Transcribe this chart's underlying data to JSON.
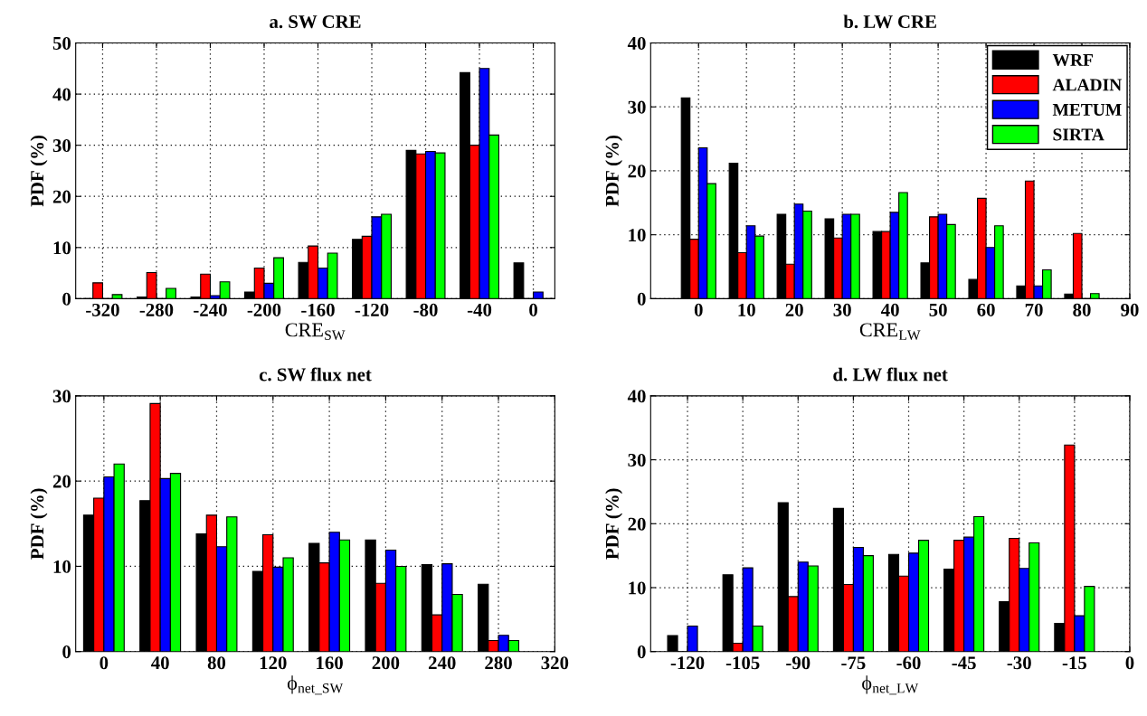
{
  "chart_data": [
    {
      "type": "bar",
      "title": "a. SW CRE",
      "xlabel": "CRE$_{SW}$",
      "ylabel": "PDF (%)",
      "x": [
        -320,
        -280,
        -240,
        -200,
        -160,
        -120,
        -80,
        -40,
        0
      ],
      "xlim": [
        -340,
        16
      ],
      "xticks": [
        -320,
        -280,
        -240,
        -200,
        -160,
        -120,
        -80,
        -40,
        0
      ],
      "ylim": [
        0,
        50
      ],
      "yticks": [
        0,
        10,
        20,
        30,
        40,
        50
      ],
      "grid": true,
      "series": [
        {
          "color": "#000000",
          "values": [
            0,
            0.3,
            0.3,
            1.3,
            7.1,
            11.6,
            29.0,
            44.2,
            7.0
          ]
        },
        {
          "color": "#ff0000",
          "values": [
            3.1,
            5.1,
            4.8,
            6.0,
            10.3,
            12.2,
            28.3,
            30.0,
            0
          ]
        },
        {
          "color": "#0000ff",
          "values": [
            0,
            null,
            0.6,
            3.0,
            6.0,
            16.0,
            28.8,
            45.0,
            1.3
          ]
        },
        {
          "color": "#00ff00",
          "values": [
            0.8,
            2.0,
            3.3,
            8.0,
            8.9,
            16.5,
            28.5,
            32.0,
            0
          ]
        }
      ]
    },
    {
      "type": "bar",
      "title": "b. LW CRE",
      "xlabel": "CRE$_{LW}$",
      "ylabel": "PDF (%)",
      "x": [
        0,
        10,
        20,
        30,
        40,
        50,
        60,
        70,
        80
      ],
      "xlim": [
        -10,
        90
      ],
      "xticks": [
        0,
        10,
        20,
        30,
        40,
        50,
        60,
        70,
        80,
        90
      ],
      "ylim": [
        0,
        40
      ],
      "yticks": [
        0,
        10,
        20,
        30,
        40
      ],
      "grid": true,
      "legend": "top right",
      "series": [
        {
          "name": "WRF",
          "color": "#000000",
          "values": [
            31.4,
            21.2,
            13.2,
            12.5,
            10.5,
            5.6,
            3.0,
            2.0,
            0.7
          ]
        },
        {
          "name": "ALADIN",
          "color": "#ff0000",
          "values": [
            9.3,
            7.2,
            5.4,
            9.5,
            10.5,
            12.8,
            15.7,
            18.4,
            10.2
          ]
        },
        {
          "name": "METUM",
          "color": "#0000ff",
          "values": [
            23.6,
            11.4,
            14.8,
            13.2,
            13.5,
            13.2,
            8.0,
            2.0,
            0
          ]
        },
        {
          "name": "SIRTA",
          "color": "#00ff00",
          "values": [
            18.0,
            9.8,
            13.7,
            13.2,
            16.6,
            11.6,
            11.4,
            4.5,
            0.8
          ]
        }
      ]
    },
    {
      "type": "bar",
      "title": "c. SW flux net",
      "xlabel": "ϕ$_{net_SW}$",
      "ylabel": "PDF (%)",
      "x": [
        0,
        40,
        80,
        120,
        160,
        200,
        240,
        280
      ],
      "xlim": [
        -20,
        320
      ],
      "xticks": [
        0,
        40,
        80,
        120,
        160,
        200,
        240,
        280,
        320
      ],
      "ylim": [
        0,
        30
      ],
      "yticks": [
        0,
        10,
        20,
        30
      ],
      "grid": true,
      "series": [
        {
          "color": "#000000",
          "values": [
            16.0,
            17.7,
            13.8,
            9.4,
            12.7,
            13.1,
            10.2,
            7.9
          ]
        },
        {
          "color": "#ff0000",
          "values": [
            18.0,
            29.1,
            16.0,
            13.7,
            10.4,
            8.0,
            4.3,
            1.3
          ]
        },
        {
          "color": "#0000ff",
          "values": [
            20.5,
            20.3,
            12.3,
            9.9,
            14.0,
            11.9,
            10.3,
            1.9
          ]
        },
        {
          "color": "#00ff00",
          "values": [
            22.0,
            20.9,
            15.8,
            11.0,
            13.1,
            10.0,
            6.7,
            1.3
          ]
        }
      ]
    },
    {
      "type": "bar",
      "title": "d. LW flux net",
      "xlabel": "ϕ$_{net_LW}$",
      "ylabel": "PDF (%)",
      "x": [
        -120,
        -105,
        -90,
        -75,
        -60,
        -45,
        -30,
        -15
      ],
      "xlim": [
        -130,
        0
      ],
      "xticks": [
        -120,
        -105,
        -90,
        -75,
        -60,
        -45,
        -30,
        -15,
        0
      ],
      "ylim": [
        0,
        40
      ],
      "yticks": [
        0,
        10,
        20,
        30,
        40
      ],
      "grid": true,
      "series": [
        {
          "color": "#000000",
          "values": [
            2.5,
            12.0,
            23.3,
            22.4,
            15.2,
            12.9,
            7.8,
            4.4
          ]
        },
        {
          "color": "#ff0000",
          "values": [
            0,
            1.3,
            8.6,
            10.5,
            11.8,
            17.4,
            17.7,
            32.3
          ]
        },
        {
          "color": "#0000ff",
          "values": [
            4.0,
            13.1,
            14.0,
            16.3,
            15.4,
            17.9,
            13.0,
            5.6
          ]
        },
        {
          "color": "#00ff00",
          "values": [
            0,
            4.0,
            13.4,
            15.0,
            17.4,
            21.1,
            17.0,
            10.2
          ]
        }
      ]
    }
  ]
}
